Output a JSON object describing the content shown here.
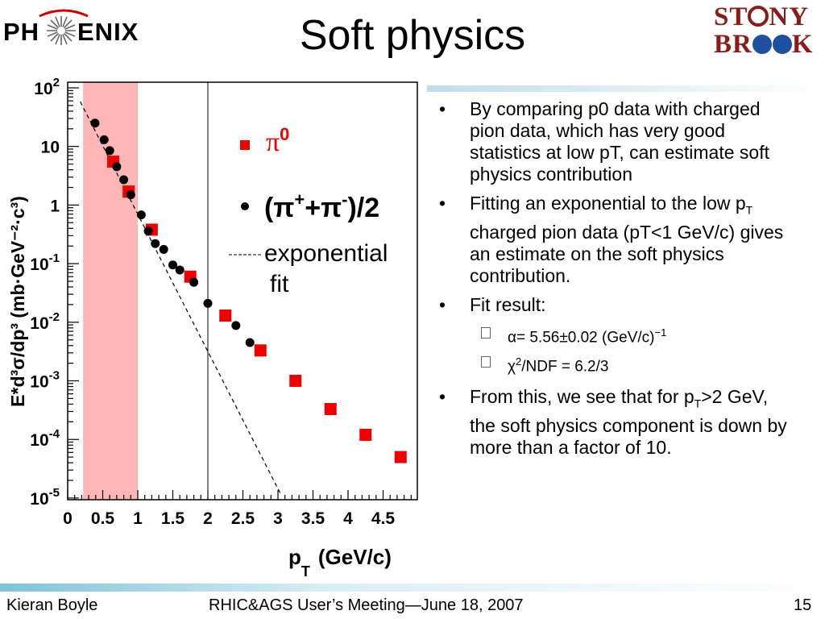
{
  "slide": {
    "title": "Soft physics",
    "page_number": "15"
  },
  "logos": {
    "left": {
      "part1": "PH",
      "part2": "ENIX"
    },
    "right": {
      "line1a": "ST",
      "line1b": "NY",
      "line2a": "BR",
      "line2b": "K"
    }
  },
  "bullets": [
    {
      "text": "By comparing p0 data with charged pion data, which has very good statistics at low pT, can estimate soft physics contribution"
    },
    {
      "pre": "Fitting an exponential to the low p",
      "sub": "T",
      "post": " charged pion data (pT<1 GeV/c) gives an estimate on the soft physics contribution."
    },
    {
      "text": "Fit result:"
    },
    {
      "pre": "From this, we see that for p",
      "sub": "T",
      "post": ">2 GeV, the soft physics component is down by more than a factor of 10."
    }
  ],
  "subbullets": [
    {
      "sym": "α",
      "text": "= 5.56±0.02 (GeV/c)",
      "sup": "−1"
    },
    {
      "sym": "χ",
      "sup": "2",
      "text": "/NDF = 6.2/3"
    }
  ],
  "footer": {
    "author": "Kieran Boyle",
    "meeting": "RHIC&AGS User’s Meeting—June 18, 2007"
  },
  "chart_data": {
    "type": "scatter",
    "y_scale": "log",
    "xlim": [
      0,
      5.0
    ],
    "ylim_exp": [
      -5.4,
      2
    ],
    "x_ticks": [
      "0",
      "0.5",
      "1",
      "1.5",
      "2",
      "2.5",
      "3",
      "3.5",
      "4",
      "4.5"
    ],
    "y_ticks": [
      {
        "base": "10",
        "exp": "2"
      },
      {
        "base": "10",
        "exp": ""
      },
      {
        "base": "1",
        "exp": ""
      },
      {
        "base": "10",
        "exp": "-1"
      },
      {
        "base": "10",
        "exp": "-2"
      },
      {
        "base": "10",
        "exp": "-3"
      },
      {
        "base": "10",
        "exp": "-4"
      },
      {
        "base": "10",
        "exp": "-5"
      }
    ],
    "xlabel": {
      "main": "p",
      "sub": "T",
      "unit": "(GeV/c)"
    },
    "ylabel": "E*d³σ/dp³ (mb·GeV⁻²·c³)",
    "shaded_band": [
      0.22,
      1.0
    ],
    "shaded_color": "#ffb6b6",
    "vline_x": 2.0,
    "legend": {
      "pi0": "π",
      "pi0_sup": "0",
      "charged": "(π",
      "charged_sup1": "+",
      "charged_mid": "+π",
      "charged_sup2": "-",
      "charged_end": ")/2",
      "exp": "exponential",
      "exp2": "fit"
    },
    "series": [
      {
        "name": "π0",
        "marker": "square",
        "color": "#ee0000",
        "x": [
          0.65,
          0.87,
          1.2,
          1.75,
          2.25,
          2.75,
          3.25,
          3.75,
          4.25,
          4.75
        ],
        "y": [
          5.5,
          1.7,
          0.38,
          0.06,
          0.013,
          0.0033,
          0.001,
          0.00033,
          0.00012,
          5e-05
        ]
      },
      {
        "name": "(π++π-)/2",
        "marker": "circle",
        "color": "#000000",
        "x": [
          0.39,
          0.52,
          0.6,
          0.7,
          0.8,
          0.9,
          1.05,
          1.15,
          1.25,
          1.37,
          1.5,
          1.6,
          1.8,
          2.0,
          2.4,
          2.6
        ],
        "y": [
          25,
          13,
          8.5,
          4.5,
          2.7,
          1.5,
          0.68,
          0.36,
          0.22,
          0.175,
          0.095,
          0.078,
          0.048,
          0.021,
          0.0088,
          0.0045
        ]
      }
    ],
    "fit": {
      "type": "exponential",
      "x": [
        0.18,
        3.05
      ],
      "y": [
        58,
        1.1e-05
      ]
    }
  }
}
